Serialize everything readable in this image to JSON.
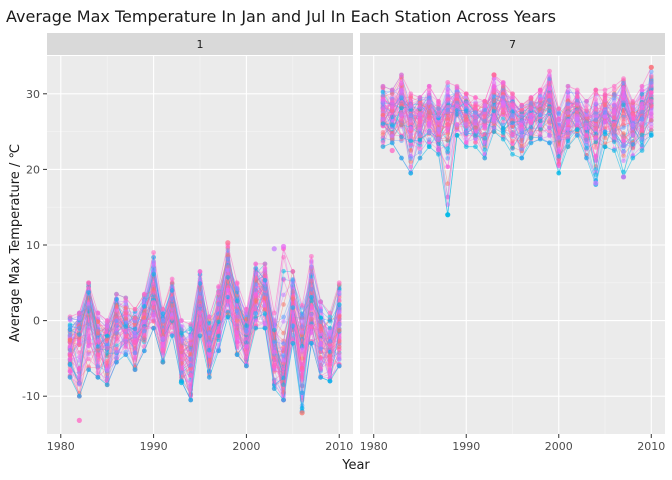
{
  "chart_data": {
    "type": "line",
    "title": "Average Max Temperature In Jan and Jul In Each Station Across Years",
    "xlabel": "Year",
    "ylabel": "Average Max Temperature / ℃",
    "xlim": [
      1980,
      2010
    ],
    "ylim": [
      -15,
      35
    ],
    "x_ticks": [
      1980,
      1990,
      2000,
      2010
    ],
    "x_tick_labels": [
      "1980",
      "1990",
      "2000",
      "2010"
    ],
    "y_ticks": [
      -10,
      0,
      10,
      20,
      30
    ],
    "y_tick_labels": [
      "-10",
      "0",
      "10",
      "20",
      "30"
    ],
    "grid": true,
    "legend": "none",
    "colors": {
      "panel_bg": "#ebebeb",
      "strip_bg": "#d9d9d9",
      "grid": "#ffffff",
      "series_palette": [
        "#f8766d",
        "#ff66c4",
        "#c77cff",
        "#619cff",
        "#00b8e7",
        "#e76bf3",
        "#fd61d1",
        "#ff6c91"
      ]
    },
    "panels": [
      {
        "label": "1",
        "x": [
          1981,
          1982,
          1983,
          1984,
          1985,
          1986,
          1987,
          1988,
          1989,
          1990,
          1991,
          1992,
          1993,
          1994,
          1995,
          1996,
          1997,
          1998,
          1999,
          2000,
          2001,
          2002,
          2003,
          2004,
          2005,
          2006,
          2007,
          2008,
          2009,
          2010
        ],
        "mean": [
          -3.5,
          -2.0,
          2.5,
          -2.5,
          -3.0,
          0.0,
          -0.5,
          -2.0,
          0.5,
          4.0,
          -1.5,
          2.5,
          -4.0,
          -5.0,
          2.5,
          -3.0,
          1.0,
          6.0,
          1.5,
          -1.5,
          4.0,
          4.0,
          -3.0,
          -6.0,
          2.0,
          -3.0,
          3.0,
          -2.5,
          -3.5,
          0.5
        ],
        "min": [
          -7.5,
          -10.0,
          -6.5,
          -7.5,
          -8.5,
          -5.5,
          -4.5,
          -6.5,
          -4.0,
          -1.0,
          -5.5,
          -2.0,
          -8.0,
          -10.5,
          -2.0,
          -7.5,
          -4.0,
          0.5,
          -4.5,
          -6.0,
          -1.0,
          -1.0,
          -9.0,
          -10.5,
          -3.0,
          -12.0,
          -3.0,
          -7.5,
          -8.0,
          -6.0
        ],
        "max": [
          0.5,
          1.0,
          5.0,
          1.0,
          0.0,
          3.5,
          3.0,
          1.5,
          3.5,
          9.0,
          1.5,
          5.5,
          0.0,
          -0.5,
          6.5,
          0.5,
          4.5,
          10.0,
          5.0,
          1.5,
          7.5,
          7.5,
          1.0,
          9.5,
          6.5,
          2.0,
          8.5,
          2.5,
          1.0,
          5.0
        ],
        "outliers": [
          [
            1982,
            -13.2
          ],
          [
            1993,
            -8.2
          ],
          [
            1998,
            10.3
          ],
          [
            2003,
            9.5
          ],
          [
            2004,
            9.8
          ],
          [
            2006,
            -12.2
          ]
        ]
      },
      {
        "label": "7",
        "x": [
          1981,
          1982,
          1983,
          1984,
          1985,
          1986,
          1987,
          1988,
          1989,
          1990,
          1991,
          1992,
          1993,
          1994,
          1995,
          1996,
          1997,
          1998,
          1999,
          2000,
          2001,
          2002,
          2003,
          2004,
          2005,
          2006,
          2007,
          2008,
          2009,
          2010
        ],
        "mean": [
          27.5,
          27.0,
          28.5,
          26.0,
          26.5,
          27.5,
          25.5,
          27.0,
          28.5,
          27.0,
          26.5,
          26.5,
          28.0,
          28.5,
          27.0,
          26.0,
          27.0,
          27.5,
          29.0,
          24.0,
          27.0,
          27.5,
          25.5,
          26.0,
          27.5,
          26.5,
          28.5,
          26.0,
          27.0,
          29.5
        ],
        "min": [
          23.0,
          23.5,
          21.5,
          19.5,
          21.5,
          23.0,
          22.0,
          14.0,
          24.5,
          23.0,
          23.0,
          21.5,
          25.0,
          24.0,
          22.0,
          21.5,
          23.5,
          24.0,
          23.5,
          19.5,
          23.0,
          24.5,
          21.5,
          18.0,
          23.0,
          22.5,
          19.0,
          21.5,
          22.5,
          24.5
        ],
        "max": [
          31.0,
          30.5,
          32.5,
          30.0,
          29.5,
          31.0,
          29.0,
          31.5,
          31.0,
          30.0,
          29.5,
          29.0,
          32.5,
          31.5,
          30.0,
          28.5,
          29.5,
          30.5,
          33.0,
          28.0,
          31.0,
          30.5,
          29.0,
          30.5,
          30.5,
          31.0,
          32.0,
          29.0,
          31.0,
          33.5
        ],
        "outliers": [
          [
            1982,
            22.5
          ],
          [
            1988,
            14.0
          ],
          [
            1993,
            32.5
          ],
          [
            2004,
            18.2
          ],
          [
            2007,
            19.0
          ],
          [
            2010,
            33.5
          ]
        ]
      }
    ]
  }
}
